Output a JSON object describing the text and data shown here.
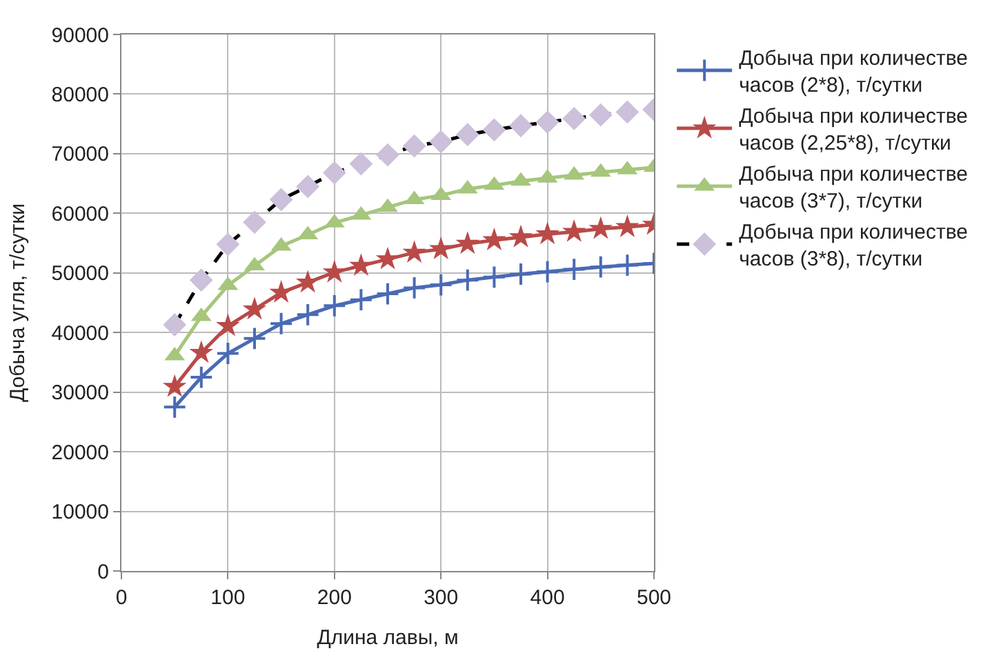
{
  "chart_data": {
    "type": "line",
    "xlabel": "Длина лавы, м",
    "ylabel": "Добыча угля, т/сутки",
    "x": [
      50,
      75,
      100,
      125,
      150,
      175,
      200,
      225,
      250,
      275,
      300,
      325,
      350,
      375,
      400,
      425,
      450,
      475,
      500
    ],
    "xlim": [
      0,
      500
    ],
    "xticks": [
      0,
      100,
      200,
      300,
      400,
      500
    ],
    "ylim": [
      0,
      90000
    ],
    "yticks": [
      0,
      10000,
      20000,
      30000,
      40000,
      50000,
      60000,
      70000,
      80000,
      90000
    ],
    "grid": true,
    "legend": "right",
    "series": [
      {
        "name": "Добыча при количестве часов (2*8), т/сутки",
        "color": "#4a6ab5",
        "marker": "cross",
        "line_style": "solid",
        "values": [
          27500,
          32500,
          36500,
          39000,
          41500,
          43000,
          44500,
          45500,
          46500,
          47500,
          48000,
          48800,
          49300,
          49800,
          50200,
          50600,
          51000,
          51300,
          51600
        ]
      },
      {
        "name": "Добыча при количестве часов (2,25*8), т/сутки",
        "color": "#b94a48",
        "marker": "star",
        "line_style": "solid",
        "values": [
          30900,
          36600,
          41100,
          43900,
          46700,
          48400,
          50100,
          51200,
          52300,
          53400,
          54000,
          54900,
          55500,
          56000,
          56500,
          56900,
          57400,
          57700,
          58100
        ]
      },
      {
        "name": "Добыча при количестве часов (3*7), т/сутки",
        "color": "#a6c67c",
        "marker": "triangle",
        "line_style": "solid",
        "values": [
          36100,
          42700,
          47900,
          51200,
          54500,
          56400,
          58400,
          59700,
          61000,
          62300,
          63000,
          64100,
          64700,
          65400,
          65900,
          66400,
          66900,
          67300,
          67700
        ]
      },
      {
        "name": "Добыча при количестве часов (3*8), т/сутки",
        "color": "#000000",
        "colors": [
          "#ccc0da",
          "#ccc0da",
          "#ccc0da",
          "#ccc0da",
          "#ccc0da",
          "#ccc0da",
          "#ccc0da",
          "#ccc0da",
          "#ccc0da",
          "#ccc0da",
          "#ccc0da",
          "#ccc0da",
          "#ccc0da",
          "#ccc0da",
          "#ccc0da",
          "#ccc0da",
          "#ccc0da",
          "#ccc0da",
          "#ccc0da"
        ],
        "marker": "diamond",
        "line_style": "dashed",
        "values": [
          41300,
          48800,
          54800,
          58500,
          62300,
          64500,
          66800,
          68300,
          69800,
          71300,
          72000,
          73200,
          74000,
          74700,
          75300,
          75900,
          76500,
          77000,
          77400
        ]
      }
    ]
  }
}
